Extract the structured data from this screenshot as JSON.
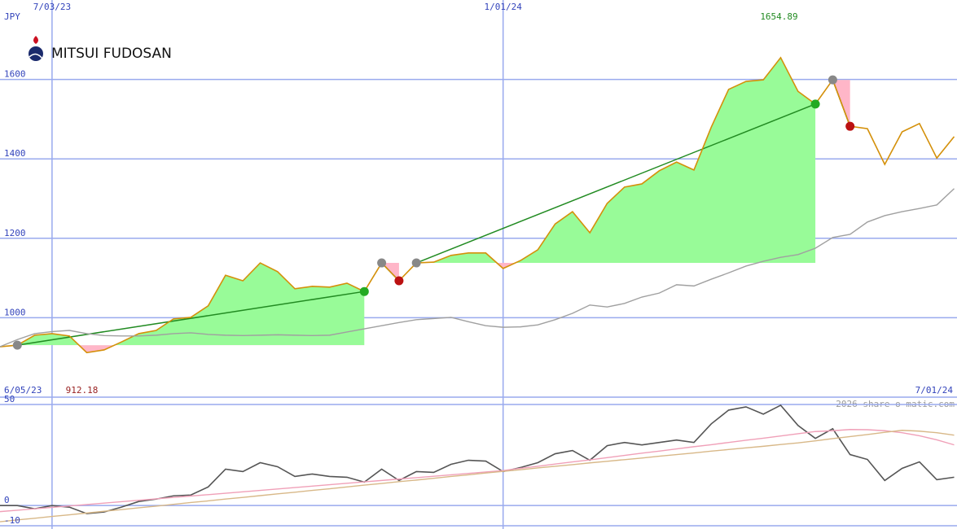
{
  "chart_data": [
    {
      "type": "line",
      "title": "MITSUI FUDOSAN",
      "unit": "JPY",
      "categories": [
        null,
        null,
        null,
        "7/03/23",
        null,
        null,
        null,
        null,
        null,
        null,
        null,
        null,
        null,
        null,
        null,
        null,
        null,
        null,
        null,
        null,
        null,
        null,
        null,
        null,
        null,
        null,
        null,
        null,
        null,
        "1/01/24",
        null,
        null,
        null,
        null,
        null,
        null,
        null,
        null,
        null,
        null,
        null,
        null,
        null,
        null,
        null,
        null,
        null,
        null,
        null,
        null,
        null,
        null,
        null,
        null,
        null,
        null
      ],
      "series": [
        {
          "color": "#d4900a",
          "values": [
            927,
            931,
            956,
            960,
            954,
            912.18,
            919,
            939,
            960,
            968,
            997,
            1001,
            1030,
            1107,
            1093,
            1138,
            1116,
            1073,
            1079,
            1077,
            1087,
            1066,
            1138,
            1093,
            1138,
            1140,
            1157,
            1163,
            1163,
            1124,
            1144,
            1171,
            1236,
            1267,
            1214,
            1288,
            1329,
            1337,
            1370,
            1392,
            1372,
            1480,
            1575,
            1595,
            1599,
            1654.89,
            1570,
            1538,
            1599,
            1482,
            1476,
            1386,
            1468,
            1489,
            1402,
            1456
          ]
        },
        {
          "color": "#a0a0a0",
          "values": [
            927,
            945,
            960,
            965,
            968,
            960,
            955,
            954,
            954,
            956,
            960,
            962,
            958,
            956,
            955,
            956,
            957,
            956,
            955,
            956,
            964,
            972,
            980,
            988,
            995,
            998,
            1001,
            990,
            980,
            976,
            977,
            982,
            995,
            1011,
            1032,
            1027,
            1036,
            1052,
            1062,
            1083,
            1080,
            1097,
            1113,
            1130,
            1142,
            1152,
            1159,
            1175,
            1202,
            1210,
            1241,
            1257,
            1267,
            1275,
            1284,
            1325
          ]
        }
      ],
      "entries": [
        null,
        931,
        null,
        null,
        null,
        null,
        null,
        null,
        null,
        null,
        null,
        null,
        null,
        null,
        null,
        null,
        null,
        null,
        null,
        null,
        null,
        null,
        1138,
        null,
        1138,
        null,
        null,
        null,
        null,
        null,
        null,
        null,
        null,
        null,
        null,
        null,
        null,
        null,
        null,
        null,
        null,
        null,
        null,
        null,
        null,
        null,
        null,
        null,
        1599,
        null,
        null,
        null,
        null,
        null,
        null,
        null
      ],
      "exits": [
        null,
        null,
        null,
        null,
        null,
        null,
        null,
        null,
        null,
        null,
        null,
        null,
        null,
        null,
        null,
        null,
        null,
        null,
        null,
        null,
        null,
        1066,
        null,
        1093,
        null,
        null,
        null,
        null,
        null,
        null,
        null,
        null,
        null,
        null,
        null,
        null,
        null,
        null,
        null,
        null,
        null,
        null,
        null,
        null,
        null,
        null,
        null,
        1538,
        null,
        1482,
        null,
        null,
        null,
        null,
        null,
        null
      ],
      "high": 1654.89,
      "low": 912.18,
      "ylim": [
        800,
        1800
      ],
      "yticks": [
        1000,
        1200,
        1400,
        1600
      ],
      "grid": true
    },
    {
      "type": "line",
      "start_date": "6/05/23",
      "end_date": "7/01/24",
      "credit": "2026 share-o-matic.com",
      "series": [
        {
          "color": "#555555",
          "values": [
            0,
            0,
            -1.6,
            0,
            -0.8,
            -4,
            -3.2,
            -0.8,
            2,
            3.2,
            4.8,
            5.2,
            9.2,
            18,
            16.8,
            21.2,
            19.2,
            14.4,
            15.6,
            14.4,
            14,
            11.6,
            18,
            12.4,
            16.8,
            16.4,
            20.4,
            22.4,
            22,
            16.8,
            18.8,
            21.2,
            25.6,
            27.2,
            22.4,
            29.6,
            31.2,
            30,
            31.2,
            32.4,
            31.2,
            40.4,
            47.2,
            48.8,
            45.2,
            49.6,
            39.6,
            33.2,
            38,
            25.2,
            22.8,
            12.4,
            18.4,
            21.6,
            12.8,
            14
          ]
        },
        {
          "color": "#f0a0b8",
          "values": [
            -3,
            -2.3,
            -1.6,
            -0.9,
            -0.2,
            0.5,
            1.2,
            1.9,
            2.6,
            3.3,
            4,
            4.7,
            5.4,
            6.1,
            6.8,
            7.5,
            8.2,
            8.9,
            9.6,
            10.3,
            11,
            11.7,
            12.4,
            13.1,
            13.8,
            14.5,
            15.2,
            15.9,
            16.6,
            17.3,
            18.4,
            19.4,
            20.5,
            21.6,
            22.6,
            23.7,
            24.8,
            25.9,
            26.9,
            28,
            29.1,
            30.1,
            31.2,
            32.3,
            33.3,
            34.4,
            35.5,
            36.6,
            37,
            37.6,
            37.5,
            37,
            36,
            34.5,
            32.5,
            30
          ]
        },
        {
          "color": "#d8b888",
          "values": [
            -8,
            -7.1,
            -6.3,
            -5.4,
            -4.6,
            -3.7,
            -2.8,
            -2,
            -1.1,
            -0.3,
            0.6,
            1.5,
            2.3,
            3.2,
            4,
            4.9,
            5.8,
            6.6,
            7.5,
            8.3,
            9.2,
            10.1,
            10.9,
            11.8,
            12.6,
            13.5,
            14.4,
            15.2,
            16.1,
            16.9,
            17.7,
            18.6,
            19.4,
            20.2,
            21.1,
            21.9,
            22.7,
            23.5,
            24.4,
            25.2,
            26,
            26.9,
            27.7,
            28.5,
            29.3,
            30.2,
            31,
            32,
            33.1,
            34.1,
            35.1,
            36.2,
            37.2,
            36.8,
            36,
            34.8
          ]
        }
      ],
      "ylim": [
        -11.6,
        53.6
      ],
      "yticks": [
        50,
        0,
        -10
      ],
      "grid": true
    }
  ]
}
